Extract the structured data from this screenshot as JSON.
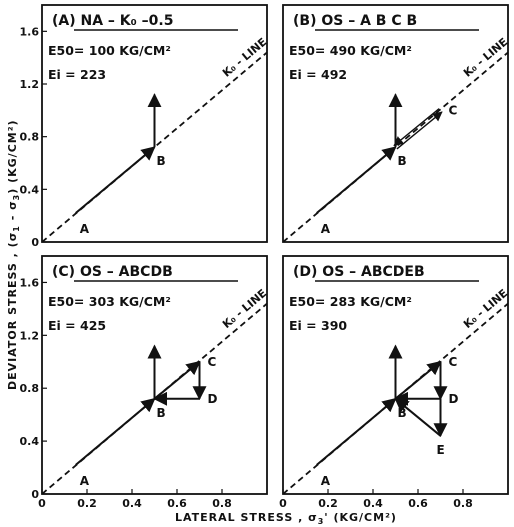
{
  "figure": {
    "y_axis_label_prefix": "DEVIATOR   STRESS  ,  (",
    "y_axis_label_sigma": "σ",
    "y_axis_label_sub1": "1",
    "y_axis_label_mid": " - ",
    "y_axis_label_sub3": "3",
    "y_axis_label_suffix": ")  (KG/CM²)",
    "x_axis_label_prefix": "LATERAL   STRESS  ,  ",
    "x_axis_label_sigma": "σ",
    "x_axis_label_sub": "3",
    "x_axis_label_suffix": "'  (KG/CM²)"
  },
  "chart_data": [
    {
      "type": "line",
      "panel_title": "(A) NA – K₀ –0.5",
      "e50_label": "E50= 100 KG/CM²",
      "ei_label": "Ei  =  223",
      "k0_label": "K₀ - LINE",
      "xlim": [
        0,
        1.0
      ],
      "ylim": [
        0,
        1.8
      ],
      "x_ticks": [],
      "y_ticks": [
        "0",
        "0.4",
        "0.8",
        "1.2",
        "1.6"
      ],
      "k0_line": [
        [
          0,
          0
        ],
        [
          1.0,
          1.44
        ]
      ],
      "points": [
        {
          "label": "A",
          "x": 0.15,
          "y": 0.22
        },
        {
          "label": "B",
          "x": 0.5,
          "y": 0.72
        }
      ],
      "paths": [
        {
          "from": "A",
          "to": "B",
          "style": "arrow"
        },
        {
          "from": "B",
          "to": [
            0.5,
            1.12
          ],
          "style": "arrow"
        }
      ]
    },
    {
      "type": "line",
      "panel_title": "(B) OS  –  A B C B",
      "e50_label": "E50= 490 KG/CM²",
      "ei_label": "Ei  =  492",
      "k0_label": "K₀ - LINE",
      "xlim": [
        0,
        1.0
      ],
      "ylim": [
        0,
        1.8
      ],
      "x_ticks": [],
      "y_ticks": [],
      "k0_line": [
        [
          0,
          0
        ],
        [
          1.0,
          1.44
        ]
      ],
      "points": [
        {
          "label": "A",
          "x": 0.15,
          "y": 0.22
        },
        {
          "label": "B",
          "x": 0.5,
          "y": 0.72
        },
        {
          "label": "C",
          "x": 0.7,
          "y": 1.0
        }
      ],
      "paths": [
        {
          "from": "A",
          "to": "B",
          "style": "arrow"
        },
        {
          "from": "B",
          "to": "C",
          "style": "double"
        },
        {
          "from": "B",
          "to": [
            0.5,
            1.12
          ],
          "style": "arrow"
        }
      ]
    },
    {
      "type": "line",
      "panel_title": "(C) OS  –  ABCDB",
      "e50_label": "E50= 303 KG/CM²",
      "ei_label": "Ei  =  425",
      "k0_label": "K₀ - LINE",
      "xlim": [
        0,
        1.0
      ],
      "ylim": [
        0,
        1.8
      ],
      "x_ticks": [
        "0",
        "0.2",
        "0.4",
        "0.6",
        "0.8"
      ],
      "y_ticks": [
        "0",
        "0.4",
        "0.8",
        "1.2",
        "1.6"
      ],
      "k0_line": [
        [
          0,
          0
        ],
        [
          1.0,
          1.44
        ]
      ],
      "points": [
        {
          "label": "A",
          "x": 0.15,
          "y": 0.22
        },
        {
          "label": "B",
          "x": 0.5,
          "y": 0.72
        },
        {
          "label": "C",
          "x": 0.7,
          "y": 1.0
        },
        {
          "label": "D",
          "x": 0.7,
          "y": 0.72
        }
      ],
      "paths": [
        {
          "from": "A",
          "to": "B",
          "style": "arrow"
        },
        {
          "from": "B",
          "to": "C",
          "style": "arrow"
        },
        {
          "from": "C",
          "to": "D",
          "style": "arrow"
        },
        {
          "from": "D",
          "to": "B",
          "style": "arrow"
        },
        {
          "from": "B",
          "to": [
            0.5,
            1.12
          ],
          "style": "arrow"
        }
      ]
    },
    {
      "type": "line",
      "panel_title": "(D) OS  –  ABCDEB",
      "e50_label": "E50= 283 KG/CM²",
      "ei_label": "Ei  =  390",
      "k0_label": "K₀ - LINE",
      "xlim": [
        0,
        1.0
      ],
      "ylim": [
        0,
        1.8
      ],
      "x_ticks": [
        "0",
        "0.2",
        "0.4",
        "0.6",
        "0.8"
      ],
      "y_ticks": [],
      "k0_line": [
        [
          0,
          0
        ],
        [
          1.0,
          1.44
        ]
      ],
      "points": [
        {
          "label": "A",
          "x": 0.15,
          "y": 0.22
        },
        {
          "label": "B",
          "x": 0.5,
          "y": 0.72
        },
        {
          "label": "C",
          "x": 0.7,
          "y": 1.0
        },
        {
          "label": "D",
          "x": 0.7,
          "y": 0.72
        },
        {
          "label": "E",
          "x": 0.7,
          "y": 0.44
        }
      ],
      "paths": [
        {
          "from": "A",
          "to": "B",
          "style": "arrow"
        },
        {
          "from": "B",
          "to": "C",
          "style": "arrow"
        },
        {
          "from": "C",
          "to": "D",
          "style": "arrow"
        },
        {
          "from": "D",
          "to": "E",
          "style": "arrow"
        },
        {
          "from": "E",
          "to": "B",
          "style": "arrow"
        },
        {
          "from": "D",
          "to": "B",
          "style": "arrow"
        },
        {
          "from": "B",
          "to": [
            0.5,
            1.12
          ],
          "style": "arrow"
        }
      ]
    }
  ]
}
